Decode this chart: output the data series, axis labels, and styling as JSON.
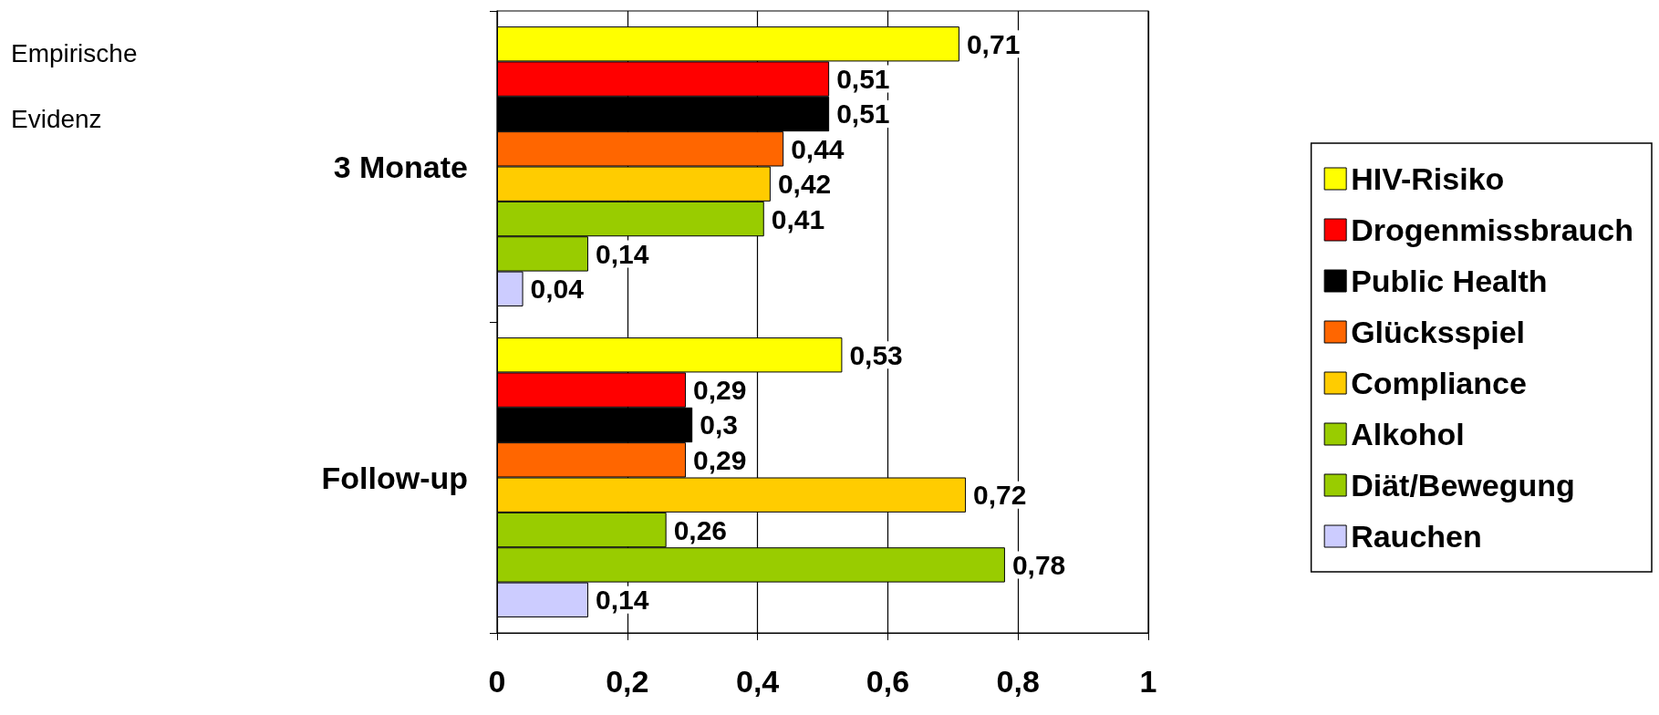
{
  "chart_data": {
    "type": "bar",
    "orientation": "horizontal",
    "categories": [
      "3 Monate",
      "Follow-up"
    ],
    "series": [
      {
        "name": "HIV-Risiko",
        "color": "#ffff00",
        "values": [
          0.71,
          0.53
        ],
        "value_labels": [
          "0,71",
          "0,53"
        ]
      },
      {
        "name": "Drogenmissbrauch",
        "color": "#ff0000",
        "values": [
          0.51,
          0.29
        ],
        "value_labels": [
          "0,51",
          "0,29"
        ]
      },
      {
        "name": "Public Health",
        "color": "#000000",
        "values": [
          0.51,
          0.3
        ],
        "value_labels": [
          "0,51",
          "0,3"
        ]
      },
      {
        "name": "Glücksspiel",
        "color": "#ff6600",
        "values": [
          0.44,
          0.29
        ],
        "value_labels": [
          "0,44",
          "0,29"
        ]
      },
      {
        "name": "Compliance",
        "color": "#ffcc00",
        "values": [
          0.42,
          0.72
        ],
        "value_labels": [
          "0,42",
          "0,72"
        ]
      },
      {
        "name": "Alkohol",
        "color": "#99cc00",
        "values": [
          0.41,
          0.26
        ],
        "value_labels": [
          "0,41",
          "0,26"
        ]
      },
      {
        "name": "Diät/Bewegung",
        "color": "#99cc00",
        "values": [
          0.14,
          0.78
        ],
        "value_labels": [
          "0,14",
          "0,78"
        ]
      },
      {
        "name": "Rauchen",
        "color": "#ccccff",
        "values": [
          0.04,
          0.14
        ],
        "value_labels": [
          "0,04",
          "0,14"
        ]
      }
    ],
    "xlim": [
      0,
      1
    ],
    "xticks": [
      0,
      {
        "value": 0.2,
        "label": "0,2"
      },
      {
        "value": 0.4,
        "label": "0,4"
      },
      {
        "value": 0.6,
        "label": "0,6"
      },
      {
        "value": 0.8,
        "label": "0,8"
      },
      1
    ],
    "grid": "x",
    "legend": "right",
    "annotations": [
      "Empirische Evidenz"
    ]
  }
}
